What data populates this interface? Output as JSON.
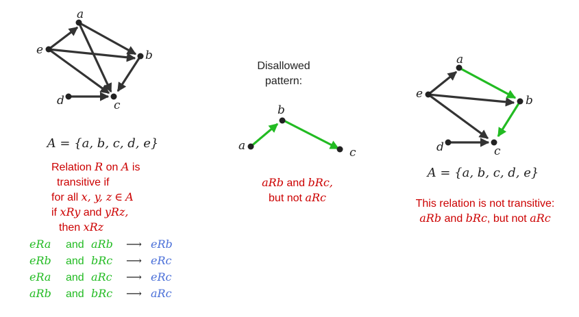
{
  "colors": {
    "edge_dark": "#333333",
    "edge_green": "#22bb22",
    "node": "#222222",
    "text_red": "#cc0000",
    "text_green": "#22bb22",
    "text_blue": "#4a6fd8",
    "text_dark": "#222222"
  },
  "left_graph": {
    "nodes": {
      "a": "a",
      "b": "b",
      "c": "c",
      "d": "d",
      "e": "e"
    },
    "set_lhs": "A",
    "set_rhs": "{a, b, c, d, e}",
    "definition": {
      "line1_pre": "Relation ",
      "line1_R": "R",
      "line1_mid": " on ",
      "line1_A": "A",
      "line1_post": " is",
      "line2": "transitive if",
      "line3_pre": "for all ",
      "line3_vars": "x, y, z",
      "line3_in": "∈",
      "line3_A": "A",
      "line4_pre": "if ",
      "line4_xRy": "xRy",
      "line4_and": " and ",
      "line4_yRz": "yRz,",
      "line5_pre": "then ",
      "line5_xRz": "xRz"
    },
    "inferences": [
      {
        "first": "eRa",
        "and": "and",
        "second": "aRb",
        "arrow": "⟶",
        "result": "eRb"
      },
      {
        "first": "eRb",
        "and": "and",
        "second": "bRc",
        "arrow": "⟶",
        "result": "eRc"
      },
      {
        "first": "eRa",
        "and": "and",
        "second": "aRc",
        "arrow": "⟶",
        "result": "eRc"
      },
      {
        "first": "aRb",
        "and": "and",
        "second": "bRc",
        "arrow": "⟶",
        "result": "aRc"
      }
    ]
  },
  "middle": {
    "title_line1": "Disallowed",
    "title_line2": "pattern:",
    "nodes": {
      "a": "a",
      "b": "b",
      "c": "c"
    },
    "caption_line1_aRb": "aRb",
    "caption_line1_and": " and ",
    "caption_line1_bRc": "bRc,",
    "caption_line2_pre": "but not ",
    "caption_line2_aRc": "aRc"
  },
  "right_graph": {
    "nodes": {
      "a": "a",
      "b": "b",
      "c": "c",
      "d": "d",
      "e": "e"
    },
    "set_lhs": "A",
    "set_rhs": "{a, b, c, d, e}",
    "caption_line1": "This relation is not transitive:",
    "caption_line2_aRb": "aRb",
    "caption_line2_and": " and ",
    "caption_line2_bRc": "bRc",
    "caption_line2_mid": ", but not ",
    "caption_line2_aRc": "aRc"
  }
}
